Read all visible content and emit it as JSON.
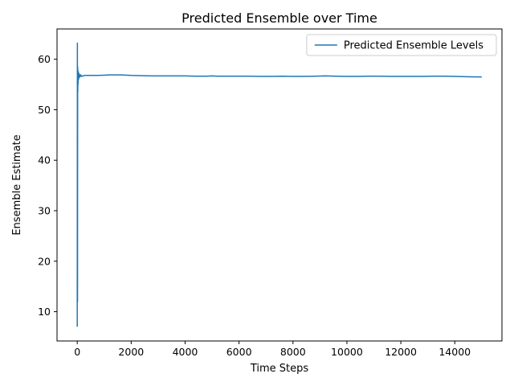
{
  "chart_data": {
    "type": "line",
    "title": "Predicted Ensemble over Time",
    "xlabel": "Time Steps",
    "ylabel": "Ensemble Estimate",
    "xlim": [
      -750,
      15750
    ],
    "ylim": [
      4.2,
      66.0
    ],
    "xticks": [
      0,
      2000,
      4000,
      6000,
      8000,
      10000,
      12000,
      14000
    ],
    "yticks": [
      10,
      20,
      30,
      40,
      50,
      60
    ],
    "grid": false,
    "legend_position": "top-right",
    "series": [
      {
        "name": "Predicted Ensemble Levels",
        "color": "#1f77b4",
        "x": [
          0,
          5,
          10,
          15,
          20,
          25,
          30,
          40,
          50,
          60,
          70,
          80,
          100,
          130,
          160,
          200,
          300,
          500,
          800,
          1200,
          1600,
          2000,
          2400,
          2800,
          3200,
          3600,
          4000,
          4400,
          4800,
          5000,
          5200,
          5600,
          6000,
          6400,
          6800,
          7200,
          7600,
          8000,
          8400,
          8800,
          9200,
          9600,
          10000,
          10400,
          10800,
          11200,
          11600,
          12000,
          12400,
          12800,
          13200,
          13600,
          14000,
          14400,
          14800,
          15000
        ],
        "values": [
          7.0,
          63.2,
          12.0,
          58.5,
          53.5,
          57.8,
          55.0,
          57.5,
          56.0,
          57.2,
          56.4,
          57.0,
          56.5,
          56.9,
          56.6,
          56.7,
          56.8,
          56.8,
          56.8,
          56.9,
          56.9,
          56.8,
          56.75,
          56.7,
          56.7,
          56.7,
          56.7,
          56.65,
          56.65,
          56.7,
          56.65,
          56.65,
          56.65,
          56.65,
          56.6,
          56.6,
          56.65,
          56.6,
          56.6,
          56.65,
          56.7,
          56.65,
          56.6,
          56.6,
          56.65,
          56.65,
          56.6,
          56.6,
          56.6,
          56.6,
          56.65,
          56.65,
          56.6,
          56.55,
          56.5,
          56.5
        ]
      }
    ]
  }
}
